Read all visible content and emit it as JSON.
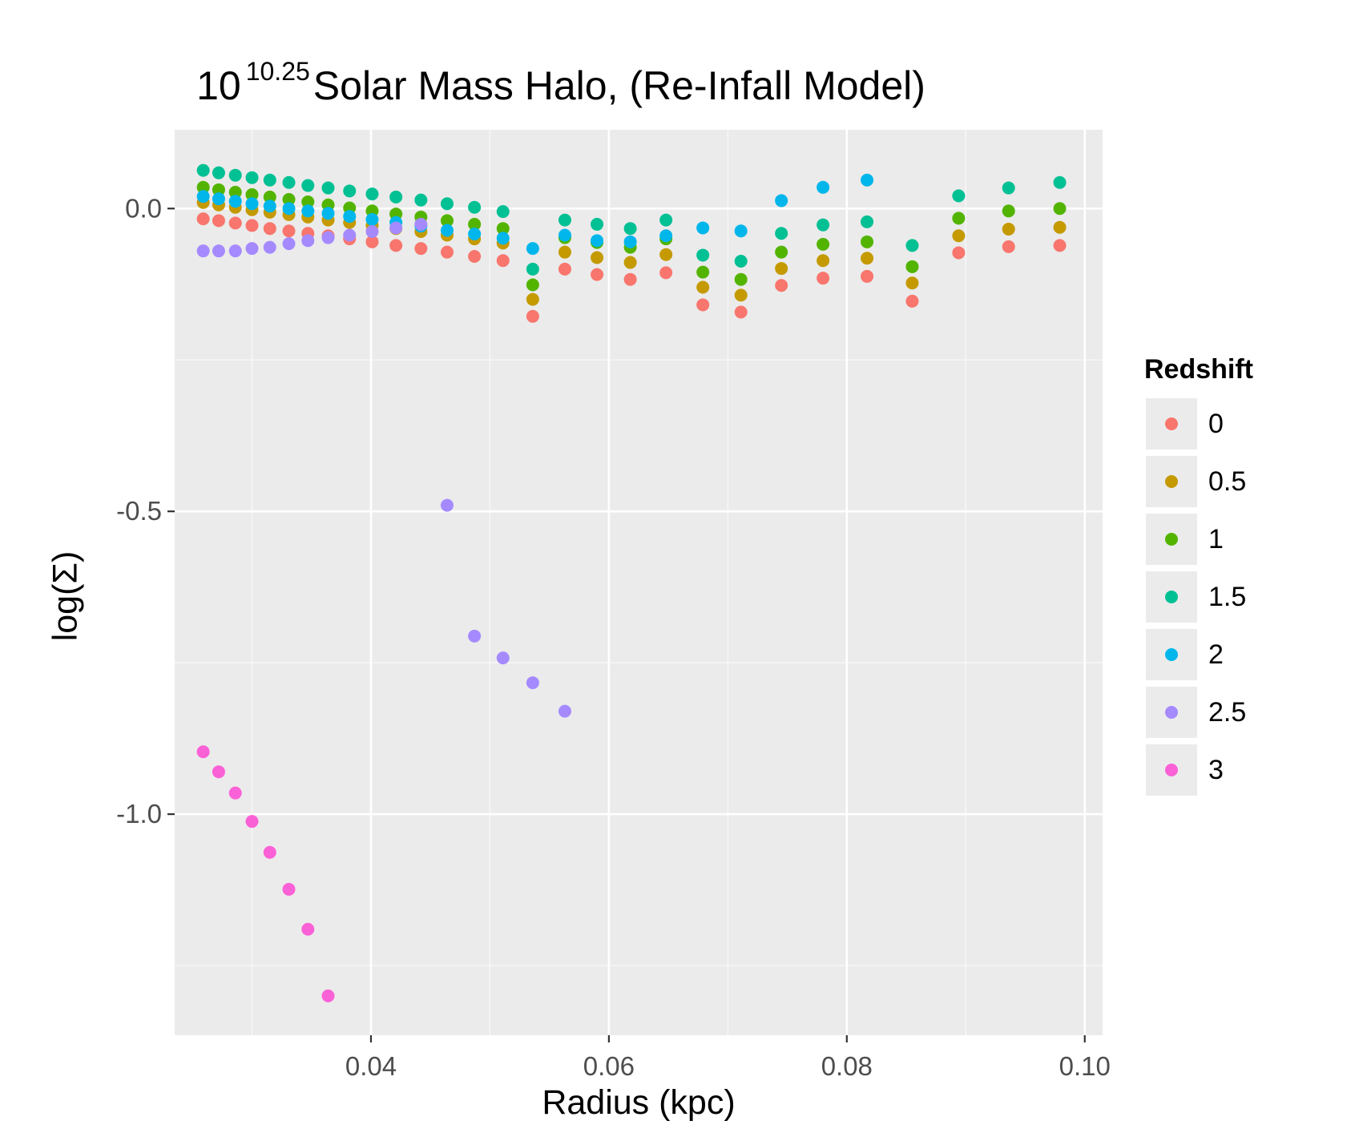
{
  "chart_data": {
    "type": "scatter",
    "title_base": "10",
    "title_exponent": "10.25",
    "title_rest": "Solar Mass Halo, (Re-Infall Model)",
    "xlabel": "Radius (kpc)",
    "ylabel": "log(Σ)",
    "xlim": [
      0.0235,
      0.1015
    ],
    "ylim": [
      -1.365,
      0.13
    ],
    "x_ticks": [
      0.04,
      0.06,
      0.08,
      0.1
    ],
    "x_tick_labels": [
      "0.04",
      "0.06",
      "0.08",
      "0.10"
    ],
    "y_ticks": [
      0.0,
      -0.5,
      -1.0
    ],
    "y_tick_labels": [
      "0.0",
      "-0.5",
      "-1.0"
    ],
    "grid": true,
    "legend_title": "Redshift",
    "legend_position": "right",
    "colors": {
      "panel_bg": "#ebebeb",
      "grid": "#ffffff",
      "tick_text": "#4d4d4d"
    },
    "series": [
      {
        "name": "0",
        "color": "#F8766D",
        "x": [
          0.0259,
          0.0272,
          0.0286,
          0.03,
          0.0315,
          0.0331,
          0.0347,
          0.0364,
          0.0382,
          0.0401,
          0.0421,
          0.0442,
          0.0464,
          0.0487,
          0.0511,
          0.0536,
          0.0563,
          0.059,
          0.0618,
          0.0648,
          0.0679,
          0.0711,
          0.0745,
          0.078,
          0.0817,
          0.0855,
          0.0894,
          0.0936,
          0.0979
        ],
        "y": [
          -0.017,
          -0.02,
          -0.024,
          -0.028,
          -0.033,
          -0.037,
          -0.041,
          -0.045,
          -0.05,
          -0.055,
          -0.061,
          -0.066,
          -0.072,
          -0.079,
          -0.086,
          -0.178,
          -0.1,
          -0.109,
          -0.117,
          -0.106,
          -0.159,
          -0.171,
          -0.127,
          -0.115,
          -0.112,
          -0.153,
          -0.073,
          -0.063,
          -0.061
        ]
      },
      {
        "name": "0.5",
        "color": "#C49A00",
        "x": [
          0.0259,
          0.0272,
          0.0286,
          0.03,
          0.0315,
          0.0331,
          0.0347,
          0.0364,
          0.0382,
          0.0401,
          0.0421,
          0.0442,
          0.0464,
          0.0487,
          0.0511,
          0.0536,
          0.0563,
          0.059,
          0.0618,
          0.0648,
          0.0679,
          0.0711,
          0.0745,
          0.078,
          0.0817,
          0.0855,
          0.0894,
          0.0936,
          0.0979
        ],
        "y": [
          0.01,
          0.006,
          0.002,
          -0.002,
          -0.006,
          -0.01,
          -0.014,
          -0.019,
          -0.023,
          -0.028,
          -0.033,
          -0.038,
          -0.044,
          -0.05,
          -0.057,
          -0.15,
          -0.072,
          -0.081,
          -0.089,
          -0.076,
          -0.13,
          -0.143,
          -0.099,
          -0.086,
          -0.082,
          -0.123,
          -0.045,
          -0.034,
          -0.031
        ]
      },
      {
        "name": "1",
        "color": "#53B400",
        "x": [
          0.0259,
          0.0272,
          0.0286,
          0.03,
          0.0315,
          0.0331,
          0.0347,
          0.0364,
          0.0382,
          0.0401,
          0.0421,
          0.0442,
          0.0464,
          0.0487,
          0.0511,
          0.0536,
          0.0563,
          0.059,
          0.0618,
          0.0648,
          0.0679,
          0.0711,
          0.0745,
          0.078,
          0.0817,
          0.0855,
          0.0894,
          0.0936,
          0.0979
        ],
        "y": [
          0.035,
          0.031,
          0.027,
          0.023,
          0.019,
          0.015,
          0.011,
          0.006,
          0.001,
          -0.004,
          -0.009,
          -0.014,
          -0.02,
          -0.026,
          -0.033,
          -0.126,
          -0.048,
          -0.056,
          -0.064,
          -0.05,
          -0.105,
          -0.117,
          -0.072,
          -0.059,
          -0.055,
          -0.096,
          -0.016,
          -0.004,
          0.0
        ]
      },
      {
        "name": "1.5",
        "color": "#00C094",
        "x": [
          0.0259,
          0.0272,
          0.0286,
          0.03,
          0.0315,
          0.0331,
          0.0347,
          0.0364,
          0.0382,
          0.0401,
          0.0421,
          0.0442,
          0.0464,
          0.0487,
          0.0511,
          0.0536,
          0.0563,
          0.059,
          0.0618,
          0.0648,
          0.0679,
          0.0711,
          0.0745,
          0.078,
          0.0817,
          0.0855,
          0.0894,
          0.0936,
          0.0979
        ],
        "y": [
          0.063,
          0.059,
          0.055,
          0.051,
          0.047,
          0.043,
          0.038,
          0.034,
          0.029,
          0.024,
          0.019,
          0.014,
          0.008,
          0.002,
          -0.005,
          -0.1,
          -0.019,
          -0.026,
          -0.033,
          -0.019,
          -0.077,
          -0.087,
          -0.041,
          -0.027,
          -0.022,
          -0.061,
          0.021,
          0.034,
          0.043
        ]
      },
      {
        "name": "2",
        "color": "#00B6EB",
        "x": [
          0.0259,
          0.0272,
          0.0286,
          0.03,
          0.0315,
          0.0331,
          0.0347,
          0.0364,
          0.0382,
          0.0401,
          0.0421,
          0.0442,
          0.0464,
          0.0487,
          0.0511,
          0.0536,
          0.0563,
          0.059,
          0.0618,
          0.0648,
          0.0679,
          0.0711,
          0.0745,
          0.078,
          0.0817
        ],
        "y": [
          0.02,
          0.016,
          0.012,
          0.008,
          0.004,
          0.0,
          -0.004,
          -0.008,
          -0.013,
          -0.018,
          -0.023,
          -0.029,
          -0.036,
          -0.042,
          -0.049,
          -0.066,
          -0.044,
          -0.053,
          -0.055,
          -0.045,
          -0.032,
          -0.037,
          0.013,
          0.035,
          0.047
        ]
      },
      {
        "name": "2.5",
        "color": "#A58AFF",
        "x": [
          0.0259,
          0.0272,
          0.0286,
          0.03,
          0.0315,
          0.0331,
          0.0347,
          0.0364,
          0.0382,
          0.0401,
          0.0421,
          0.0442,
          0.0464,
          0.0487,
          0.0511,
          0.0536,
          0.0563
        ],
        "y": [
          -0.07,
          -0.07,
          -0.07,
          -0.066,
          -0.064,
          -0.058,
          -0.053,
          -0.048,
          -0.044,
          -0.038,
          -0.032,
          -0.026,
          -0.49,
          -0.706,
          -0.742,
          -0.783,
          -0.83
        ]
      },
      {
        "name": "3",
        "color": "#FB61D7",
        "x": [
          0.0259,
          0.0272,
          0.0286,
          0.03,
          0.0315,
          0.0331,
          0.0347,
          0.0364
        ],
        "y": [
          -0.897,
          -0.93,
          -0.965,
          -1.012,
          -1.063,
          -1.124,
          -1.19,
          -1.3
        ]
      }
    ]
  }
}
